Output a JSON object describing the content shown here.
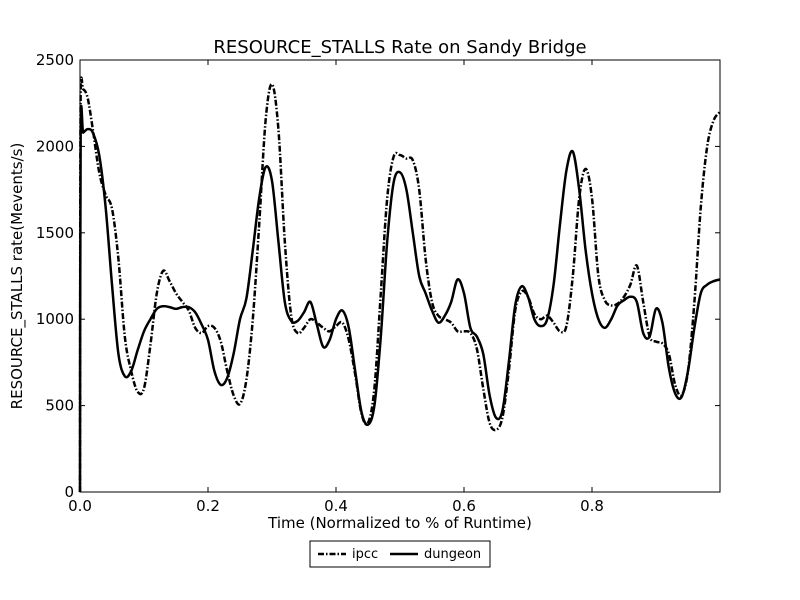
{
  "chart_data": {
    "type": "line",
    "title": "RESOURCE_STALLS Rate on Sandy Bridge",
    "xlabel": "Time (Normalized to % of Runtime)",
    "ylabel": "RESOURCE_STALLS rate(Mevents/s)",
    "xlim": [
      0.0,
      1.0
    ],
    "ylim": [
      0,
      2500
    ],
    "x_ticks": [
      "0.0",
      "0.2",
      "0.4",
      "0.6",
      "0.8"
    ],
    "y_ticks": [
      "0",
      "500",
      "1000",
      "1500",
      "2000",
      "2500"
    ],
    "grid": false,
    "legend_position": "bottom-center",
    "series": [
      {
        "name": "ipcc",
        "style": "dashdot",
        "color": "#000000",
        "points": [
          [
            0.0,
            0
          ],
          [
            0.001,
            2300
          ],
          [
            0.005,
            2330
          ],
          [
            0.012,
            2280
          ],
          [
            0.02,
            2100
          ],
          [
            0.03,
            1850
          ],
          [
            0.04,
            1720
          ],
          [
            0.05,
            1640
          ],
          [
            0.06,
            1350
          ],
          [
            0.07,
            900
          ],
          [
            0.08,
            700
          ],
          [
            0.09,
            580
          ],
          [
            0.1,
            600
          ],
          [
            0.11,
            850
          ],
          [
            0.12,
            1150
          ],
          [
            0.13,
            1280
          ],
          [
            0.14,
            1220
          ],
          [
            0.15,
            1150
          ],
          [
            0.16,
            1100
          ],
          [
            0.17,
            1050
          ],
          [
            0.18,
            950
          ],
          [
            0.19,
            920
          ],
          [
            0.2,
            960
          ],
          [
            0.21,
            950
          ],
          [
            0.22,
            870
          ],
          [
            0.23,
            700
          ],
          [
            0.24,
            560
          ],
          [
            0.25,
            510
          ],
          [
            0.26,
            650
          ],
          [
            0.27,
            1000
          ],
          [
            0.28,
            1550
          ],
          [
            0.29,
            2150
          ],
          [
            0.3,
            2360
          ],
          [
            0.31,
            2100
          ],
          [
            0.32,
            1450
          ],
          [
            0.33,
            1020
          ],
          [
            0.34,
            920
          ],
          [
            0.35,
            950
          ],
          [
            0.36,
            1000
          ],
          [
            0.37,
            980
          ],
          [
            0.38,
            950
          ],
          [
            0.39,
            930
          ],
          [
            0.4,
            960
          ],
          [
            0.41,
            980
          ],
          [
            0.42,
            880
          ],
          [
            0.43,
            680
          ],
          [
            0.44,
            450
          ],
          [
            0.45,
            400
          ],
          [
            0.46,
            600
          ],
          [
            0.47,
            1150
          ],
          [
            0.48,
            1700
          ],
          [
            0.49,
            1940
          ],
          [
            0.5,
            1950
          ],
          [
            0.51,
            1930
          ],
          [
            0.52,
            1920
          ],
          [
            0.53,
            1750
          ],
          [
            0.54,
            1350
          ],
          [
            0.55,
            1100
          ],
          [
            0.56,
            1020
          ],
          [
            0.57,
            1000
          ],
          [
            0.58,
            980
          ],
          [
            0.59,
            930
          ],
          [
            0.6,
            930
          ],
          [
            0.61,
            920
          ],
          [
            0.62,
            830
          ],
          [
            0.63,
            600
          ],
          [
            0.64,
            400
          ],
          [
            0.65,
            360
          ],
          [
            0.66,
            430
          ],
          [
            0.67,
            700
          ],
          [
            0.68,
            1050
          ],
          [
            0.69,
            1160
          ],
          [
            0.7,
            1130
          ],
          [
            0.71,
            1030
          ],
          [
            0.72,
            1000
          ],
          [
            0.73,
            1020
          ],
          [
            0.74,
            980
          ],
          [
            0.75,
            930
          ],
          [
            0.76,
            960
          ],
          [
            0.77,
            1250
          ],
          [
            0.78,
            1700
          ],
          [
            0.79,
            1870
          ],
          [
            0.8,
            1700
          ],
          [
            0.81,
            1250
          ],
          [
            0.82,
            1110
          ],
          [
            0.83,
            1080
          ],
          [
            0.84,
            1090
          ],
          [
            0.85,
            1130
          ],
          [
            0.86,
            1200
          ],
          [
            0.87,
            1310
          ],
          [
            0.88,
            1100
          ],
          [
            0.89,
            900
          ],
          [
            0.9,
            870
          ],
          [
            0.91,
            860
          ],
          [
            0.92,
            800
          ],
          [
            0.93,
            620
          ],
          [
            0.94,
            560
          ],
          [
            0.95,
            700
          ],
          [
            0.96,
            1100
          ],
          [
            0.97,
            1650
          ],
          [
            0.98,
            2000
          ],
          [
            0.99,
            2150
          ],
          [
            1.0,
            2200
          ]
        ]
      },
      {
        "name": "dungeon",
        "style": "solid",
        "color": "#000000",
        "points": [
          [
            0.0,
            0
          ],
          [
            0.001,
            2080
          ],
          [
            0.005,
            2080
          ],
          [
            0.012,
            2100
          ],
          [
            0.02,
            2080
          ],
          [
            0.03,
            1950
          ],
          [
            0.04,
            1650
          ],
          [
            0.05,
            1200
          ],
          [
            0.06,
            800
          ],
          [
            0.07,
            670
          ],
          [
            0.08,
            700
          ],
          [
            0.09,
            820
          ],
          [
            0.1,
            930
          ],
          [
            0.11,
            1000
          ],
          [
            0.12,
            1060
          ],
          [
            0.13,
            1075
          ],
          [
            0.14,
            1070
          ],
          [
            0.15,
            1060
          ],
          [
            0.16,
            1070
          ],
          [
            0.17,
            1070
          ],
          [
            0.18,
            1040
          ],
          [
            0.19,
            970
          ],
          [
            0.2,
            880
          ],
          [
            0.21,
            700
          ],
          [
            0.22,
            620
          ],
          [
            0.23,
            660
          ],
          [
            0.24,
            800
          ],
          [
            0.25,
            1000
          ],
          [
            0.26,
            1120
          ],
          [
            0.27,
            1400
          ],
          [
            0.28,
            1700
          ],
          [
            0.29,
            1880
          ],
          [
            0.3,
            1800
          ],
          [
            0.31,
            1450
          ],
          [
            0.32,
            1100
          ],
          [
            0.33,
            990
          ],
          [
            0.34,
            990
          ],
          [
            0.35,
            1040
          ],
          [
            0.36,
            1100
          ],
          [
            0.37,
            970
          ],
          [
            0.38,
            840
          ],
          [
            0.39,
            880
          ],
          [
            0.4,
            1000
          ],
          [
            0.41,
            1050
          ],
          [
            0.42,
            950
          ],
          [
            0.43,
            700
          ],
          [
            0.44,
            460
          ],
          [
            0.45,
            390
          ],
          [
            0.46,
            500
          ],
          [
            0.47,
            900
          ],
          [
            0.48,
            1450
          ],
          [
            0.49,
            1790
          ],
          [
            0.5,
            1850
          ],
          [
            0.51,
            1750
          ],
          [
            0.52,
            1500
          ],
          [
            0.53,
            1250
          ],
          [
            0.54,
            1150
          ],
          [
            0.55,
            1050
          ],
          [
            0.56,
            980
          ],
          [
            0.57,
            1020
          ],
          [
            0.58,
            1100
          ],
          [
            0.59,
            1230
          ],
          [
            0.6,
            1150
          ],
          [
            0.61,
            950
          ],
          [
            0.62,
            900
          ],
          [
            0.63,
            800
          ],
          [
            0.64,
            560
          ],
          [
            0.65,
            430
          ],
          [
            0.66,
            470
          ],
          [
            0.67,
            750
          ],
          [
            0.68,
            1080
          ],
          [
            0.69,
            1190
          ],
          [
            0.7,
            1130
          ],
          [
            0.71,
            1000
          ],
          [
            0.72,
            960
          ],
          [
            0.73,
            1000
          ],
          [
            0.74,
            1200
          ],
          [
            0.75,
            1550
          ],
          [
            0.76,
            1860
          ],
          [
            0.77,
            1970
          ],
          [
            0.78,
            1750
          ],
          [
            0.79,
            1400
          ],
          [
            0.8,
            1150
          ],
          [
            0.81,
            1000
          ],
          [
            0.82,
            950
          ],
          [
            0.83,
            1000
          ],
          [
            0.84,
            1080
          ],
          [
            0.85,
            1110
          ],
          [
            0.86,
            1130
          ],
          [
            0.87,
            1100
          ],
          [
            0.88,
            920
          ],
          [
            0.89,
            900
          ],
          [
            0.9,
            1060
          ],
          [
            0.91,
            980
          ],
          [
            0.92,
            720
          ],
          [
            0.93,
            570
          ],
          [
            0.94,
            550
          ],
          [
            0.95,
            700
          ],
          [
            0.96,
            950
          ],
          [
            0.97,
            1150
          ],
          [
            0.98,
            1200
          ],
          [
            0.99,
            1220
          ],
          [
            1.0,
            1230
          ]
        ]
      }
    ]
  }
}
